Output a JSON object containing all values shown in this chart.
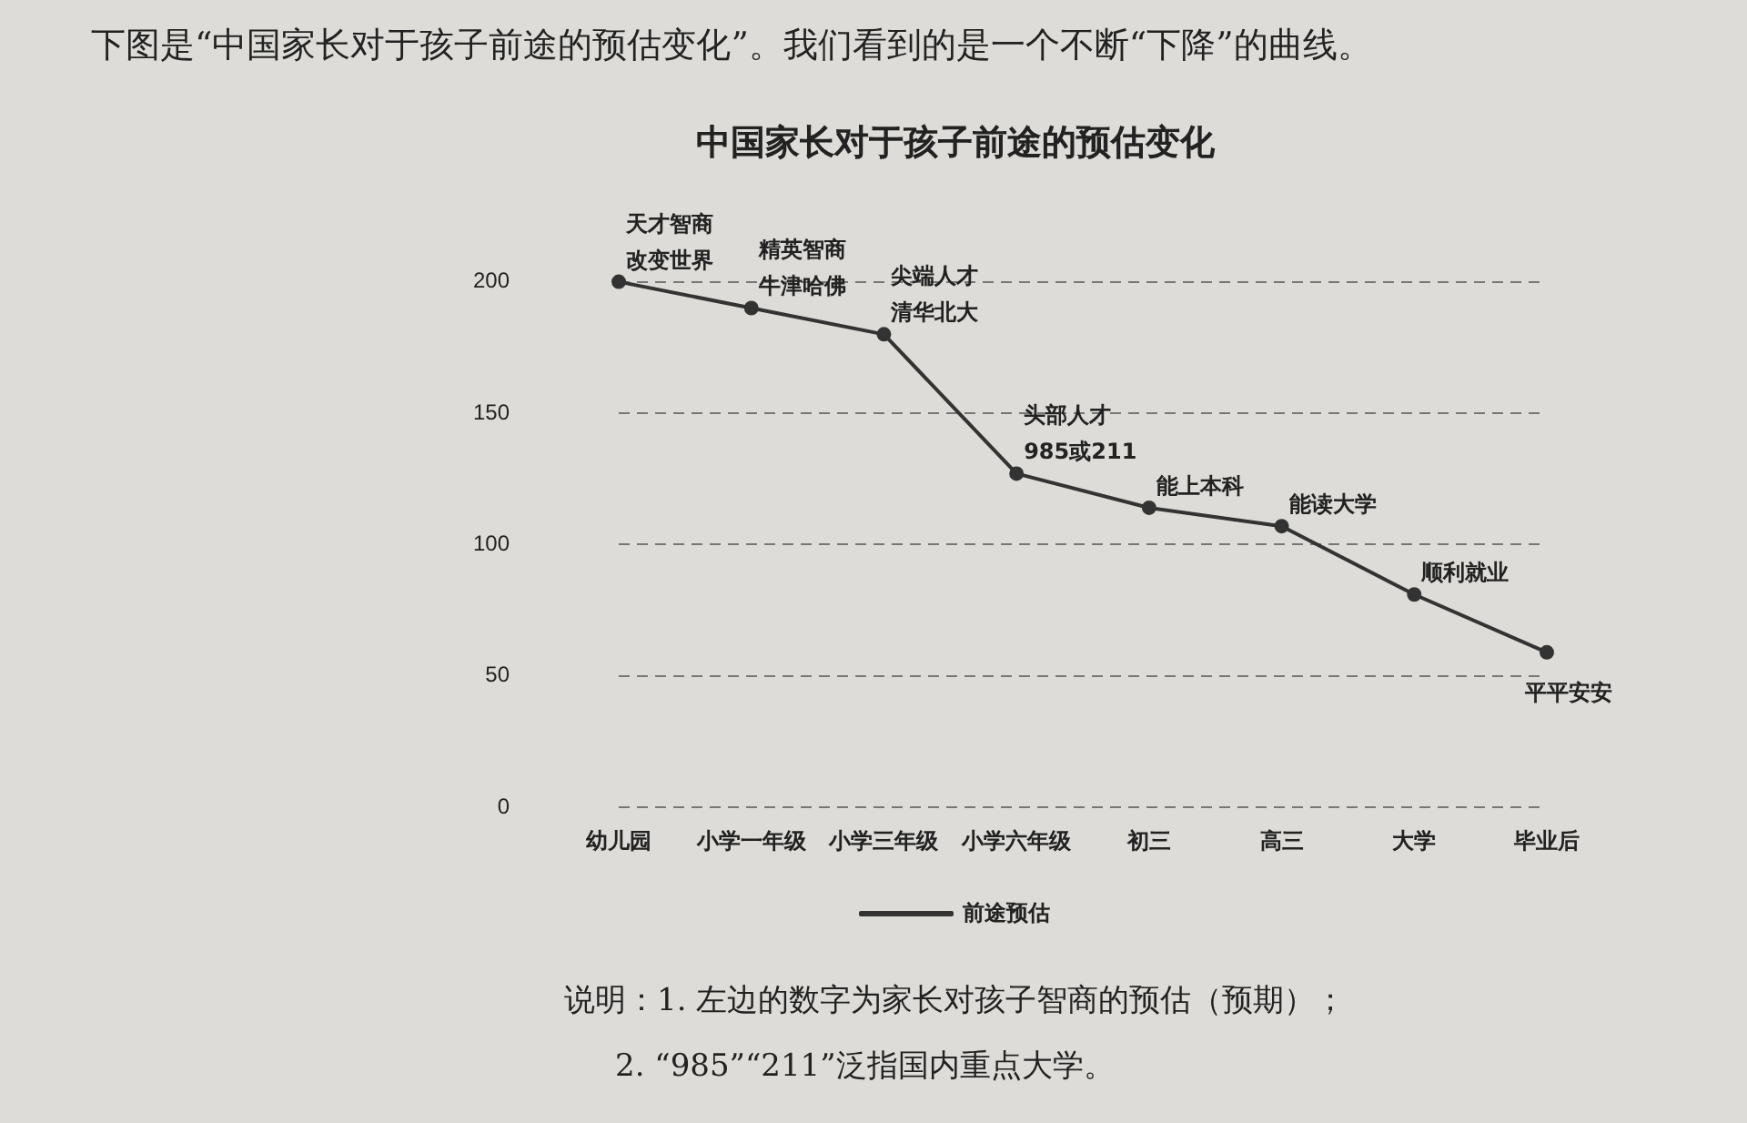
{
  "chart_data": {
    "type": "line",
    "title": "中国家长对于孩子前途的预估变化",
    "categories": [
      "幼儿园",
      "小学一年级",
      "小学三年级",
      "小学六年级",
      "初三",
      "高三",
      "大学",
      "毕业后"
    ],
    "series": [
      {
        "name": "前途预估",
        "color": "#333333",
        "values": [
          200,
          190,
          180,
          127,
          114,
          107,
          81,
          59
        ]
      }
    ],
    "ylim": [
      0,
      200
    ],
    "yticks": [
      0,
      50,
      100,
      150,
      200
    ],
    "grid": "y",
    "legend": "bottom",
    "marker": "circle",
    "line_style": "solid",
    "annotations": [
      "下图是“中国家长对于孩子前途的预估变化”。我们看到的是一个不断“下降”的曲线。",
      {
        "text": "天才智商",
        "x": "幼儿园",
        "y": 200
      },
      {
        "text": "改变世界",
        "x": "幼儿园",
        "y": 200
      },
      {
        "text": "精英智商",
        "x": "小学一年级",
        "y": 190
      },
      {
        "text": "牛津哈佛",
        "x": "小学一年级",
        "y": 190
      },
      {
        "text": "尖端人才",
        "x": "小学三年级",
        "y": 180
      },
      {
        "text": "清华北大",
        "x": "小学三年级",
        "y": 180
      },
      {
        "text": "头部人才",
        "x": "小学六年级",
        "y": 127
      },
      {
        "text": "985或211",
        "x": "小学六年级",
        "y": 127
      },
      {
        "text": "能上本科",
        "x": "初三",
        "y": 114
      },
      {
        "text": "能读大学",
        "x": "高三",
        "y": 107
      },
      {
        "text": "顺利就业",
        "x": "大学",
        "y": 81
      },
      {
        "text": "平平安安",
        "x": "毕业后",
        "y": 59
      },
      "说明：1. 左边的数字为家长对孩子智商的预估（预期）；",
      "2. “985”“211”泛指国内重点大学。"
    ]
  }
}
